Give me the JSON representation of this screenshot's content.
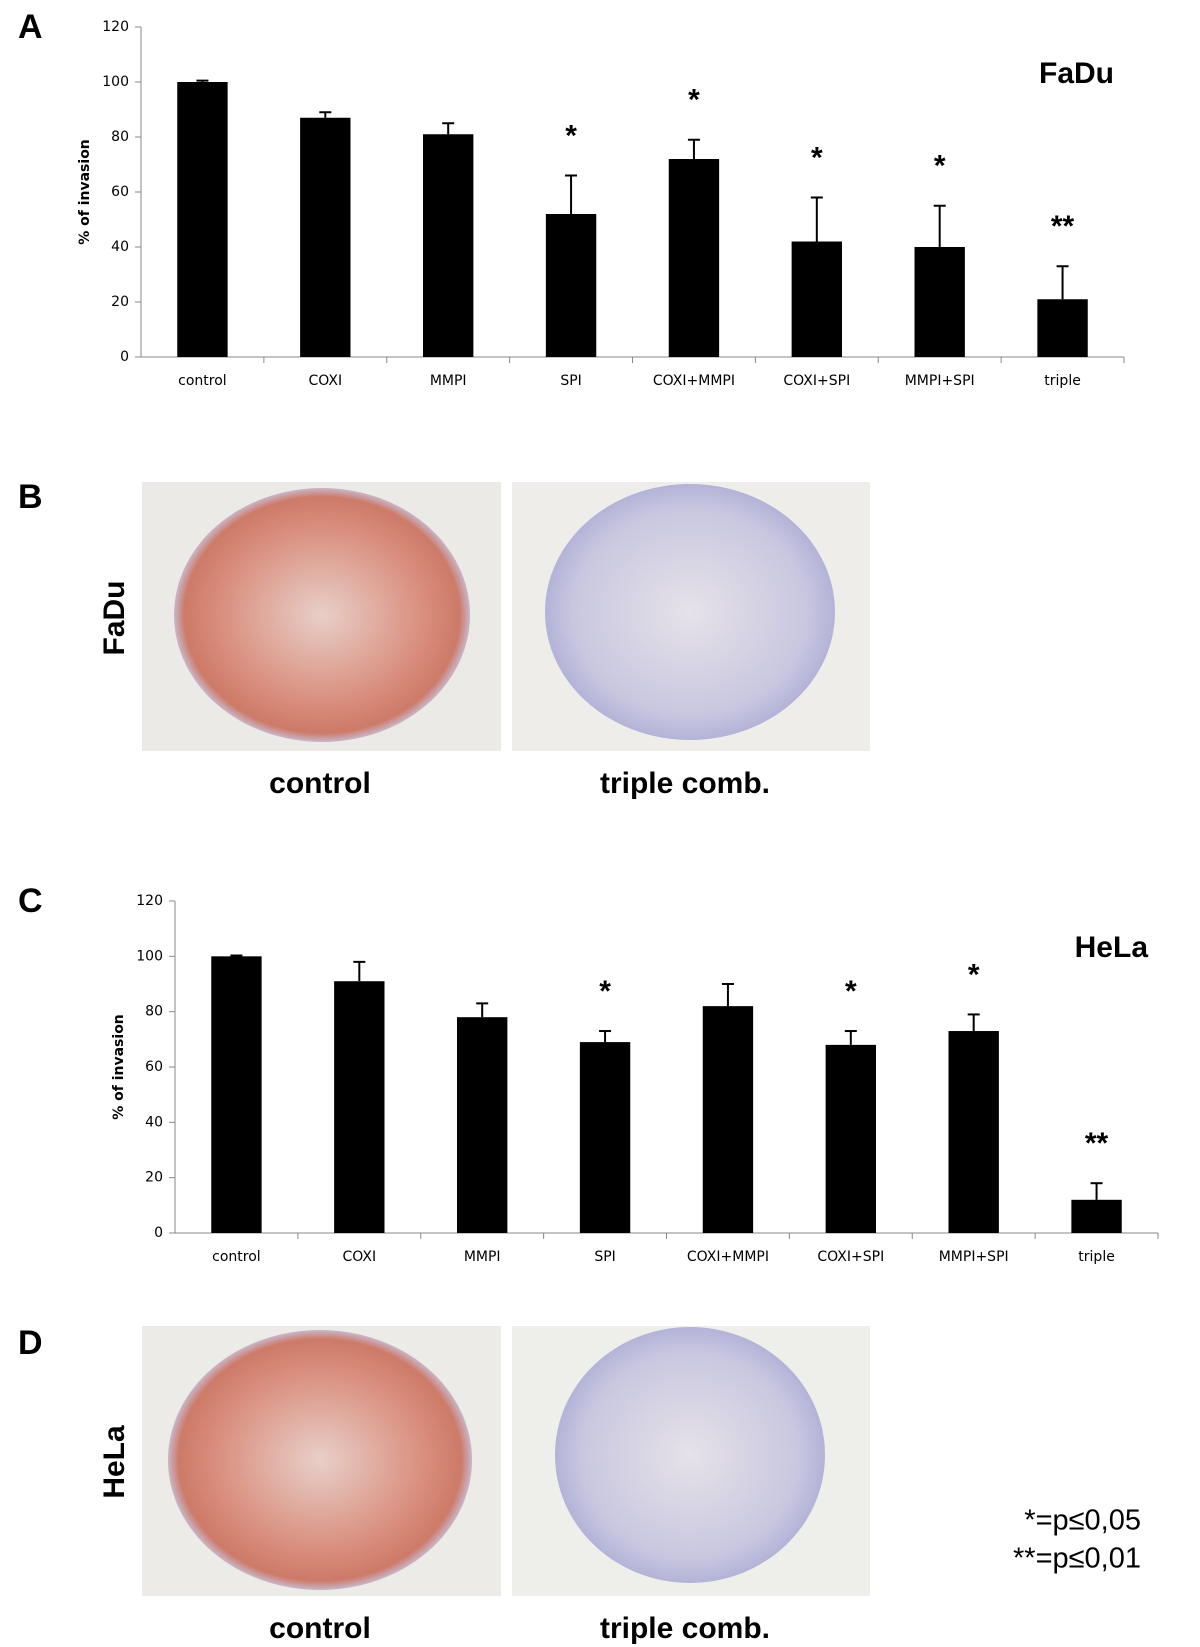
{
  "chart_data": [
    {
      "type": "bar",
      "panel": "A",
      "title": "FaDu",
      "ylabel": "% of invasion",
      "categories": [
        "control",
        "COXI",
        "MMPI",
        "SPI",
        "COXI+MMPI",
        "COXI+SPI",
        "MMPI+SPI",
        "triple"
      ],
      "values": [
        100,
        87,
        81,
        52,
        72,
        42,
        40,
        21
      ],
      "errors": [
        0.5,
        2,
        4,
        14,
        7,
        16,
        15,
        12
      ],
      "annotations": [
        null,
        null,
        null,
        "*",
        "*",
        "*",
        "*",
        "**"
      ],
      "color": "#000000",
      "ylim": [
        0,
        120
      ],
      "yticks": [
        0,
        20,
        40,
        60,
        80,
        100,
        120
      ],
      "grid": false
    },
    {
      "type": "bar",
      "panel": "C",
      "title": "HeLa",
      "ylabel": "% of invasion",
      "categories": [
        "control",
        "COXI",
        "MMPI",
        "SPI",
        "COXI+MMPI",
        "COXI+SPI",
        "MMPI+SPI",
        "triple"
      ],
      "values": [
        100,
        91,
        78,
        69,
        82,
        68,
        73,
        12
      ],
      "errors": [
        0.3,
        7,
        5,
        4,
        8,
        5,
        6,
        6
      ],
      "annotations": [
        null,
        null,
        null,
        "*",
        null,
        "*",
        "*",
        "**"
      ],
      "color": "#000000",
      "ylim": [
        0,
        120
      ],
      "yticks": [
        0,
        20,
        40,
        60,
        80,
        100,
        120
      ],
      "grid": false
    }
  ],
  "image_panels": [
    {
      "panel": "B",
      "row_label": "FaDu",
      "captions": [
        "control",
        "triple comb."
      ]
    },
    {
      "panel": "D",
      "row_label": "HeLa",
      "captions": [
        "control",
        "triple comb."
      ]
    }
  ],
  "significance_legend": [
    "*=p≤0,05",
    "**=p≤0,01"
  ]
}
